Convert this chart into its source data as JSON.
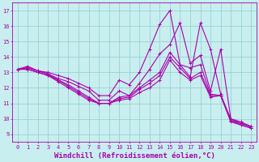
{
  "xlabel": "Windchill (Refroidissement éolien,°C)",
  "xlim": [
    -0.5,
    23.5
  ],
  "ylim": [
    8.5,
    17.5
  ],
  "xticks": [
    0,
    1,
    2,
    3,
    4,
    5,
    6,
    7,
    8,
    9,
    10,
    11,
    12,
    13,
    14,
    15,
    16,
    17,
    18,
    19,
    20,
    21,
    22,
    23
  ],
  "yticks": [
    9,
    10,
    11,
    12,
    13,
    14,
    15,
    16,
    17
  ],
  "bg_color": "#c8eef0",
  "line_color": "#aa00aa",
  "grid_color": "#90cccc",
  "lines": [
    {
      "x": [
        0,
        1,
        2,
        3,
        4,
        5,
        6,
        7,
        8,
        9,
        10,
        11,
        12,
        13,
        14,
        15,
        16,
        17,
        18,
        19,
        20,
        21,
        22,
        23
      ],
      "y": [
        13.2,
        13.4,
        13.1,
        13.0,
        12.8,
        12.6,
        12.3,
        12.0,
        11.5,
        11.5,
        12.5,
        12.2,
        13.0,
        14.5,
        16.1,
        17.0,
        13.5,
        12.7,
        16.2,
        14.5,
        11.6,
        9.9,
        9.7,
        9.5
      ]
    },
    {
      "x": [
        0,
        1,
        2,
        3,
        4,
        5,
        6,
        7,
        8,
        9,
        10,
        11,
        12,
        13,
        14,
        15,
        16,
        17,
        18,
        19,
        20,
        21,
        22,
        23
      ],
      "y": [
        13.2,
        13.3,
        13.1,
        12.9,
        12.6,
        12.4,
        12.1,
        11.8,
        11.2,
        11.2,
        11.8,
        11.5,
        12.3,
        13.2,
        14.2,
        14.8,
        16.2,
        13.6,
        14.1,
        11.8,
        14.5,
        10.0,
        9.8,
        9.5
      ]
    },
    {
      "x": [
        0,
        1,
        2,
        3,
        4,
        5,
        6,
        7,
        8,
        9,
        10,
        11,
        12,
        13,
        14,
        15,
        16,
        17,
        18,
        19,
        20,
        21,
        22,
        23
      ],
      "y": [
        13.2,
        13.3,
        13.1,
        12.9,
        12.5,
        12.2,
        11.8,
        11.4,
        11.0,
        11.0,
        11.4,
        11.5,
        12.0,
        12.5,
        13.0,
        14.3,
        13.5,
        13.3,
        13.5,
        11.6,
        11.5,
        10.0,
        9.7,
        9.5
      ]
    },
    {
      "x": [
        0,
        1,
        2,
        3,
        4,
        5,
        6,
        7,
        8,
        9,
        10,
        11,
        12,
        13,
        14,
        15,
        16,
        17,
        18,
        19,
        20,
        21,
        22,
        23
      ],
      "y": [
        13.2,
        13.2,
        13.0,
        12.8,
        12.5,
        12.1,
        11.7,
        11.3,
        11.0,
        11.0,
        11.3,
        11.4,
        11.9,
        12.3,
        12.8,
        14.0,
        13.3,
        12.6,
        13.0,
        11.5,
        11.5,
        9.9,
        9.6,
        9.4
      ]
    },
    {
      "x": [
        0,
        1,
        2,
        3,
        4,
        5,
        6,
        7,
        8,
        9,
        10,
        11,
        12,
        13,
        14,
        15,
        16,
        17,
        18,
        19,
        20,
        21,
        22,
        23
      ],
      "y": [
        13.2,
        13.2,
        13.0,
        12.8,
        12.4,
        12.0,
        11.6,
        11.2,
        11.0,
        11.0,
        11.2,
        11.3,
        11.7,
        12.0,
        12.5,
        13.8,
        13.0,
        12.5,
        12.8,
        11.4,
        11.5,
        9.8,
        9.6,
        9.4
      ]
    }
  ],
  "marker": "+",
  "markersize": 3,
  "linewidth": 0.8,
  "tick_fontsize": 5,
  "xlabel_fontsize": 6.5
}
